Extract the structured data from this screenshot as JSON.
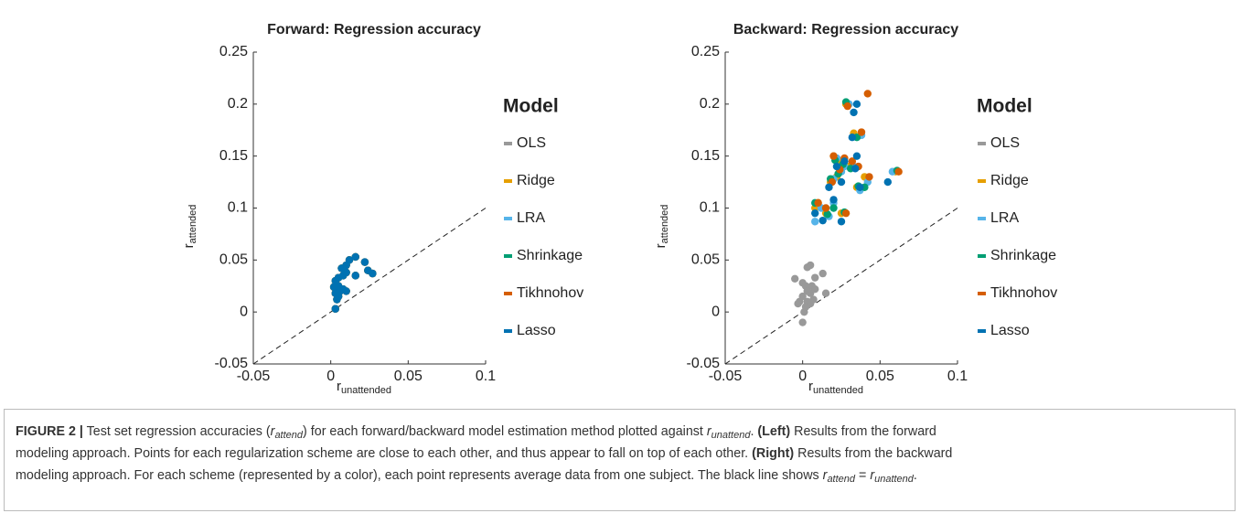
{
  "chart_data": [
    {
      "type": "scatter",
      "title": "Forward: Regression accuracy",
      "xlabel": {
        "text": "r",
        "sub": "unattended"
      },
      "ylabel": {
        "text": "r",
        "sub": "attended"
      },
      "xlim": [
        -0.05,
        0.1
      ],
      "ylim": [
        -0.05,
        0.25
      ],
      "xticks": [
        -0.05,
        0,
        0.05,
        0.1
      ],
      "yticks": [
        -0.05,
        0,
        0.05,
        0.1,
        0.15,
        0.2,
        0.25
      ],
      "legend_title": "Model",
      "series": [
        {
          "name": "OLS",
          "color": "#999999",
          "x": [
            0.003,
            0.004,
            0.005,
            0.003,
            0.006,
            0.004,
            0.003,
            0.005,
            0.008,
            0.01,
            0.007,
            0.01,
            0.012,
            0.016,
            0.022,
            0.027,
            0.024,
            0.016,
            0.008,
            0.01,
            0.005,
            0.002
          ],
          "values": [
            0.003,
            0.012,
            0.015,
            0.018,
            0.02,
            0.025,
            0.03,
            0.033,
            0.035,
            0.038,
            0.042,
            0.045,
            0.05,
            0.053,
            0.048,
            0.037,
            0.04,
            0.035,
            0.022,
            0.02,
            0.025,
            0.024
          ]
        },
        {
          "name": "Ridge",
          "color": "#e69f00",
          "x": [
            0.003,
            0.004,
            0.005,
            0.003,
            0.006,
            0.004,
            0.003,
            0.005,
            0.008,
            0.01,
            0.007,
            0.01,
            0.012,
            0.016,
            0.022,
            0.027,
            0.024,
            0.016,
            0.008,
            0.01,
            0.005,
            0.002
          ],
          "values": [
            0.003,
            0.012,
            0.015,
            0.018,
            0.02,
            0.025,
            0.03,
            0.033,
            0.035,
            0.038,
            0.042,
            0.045,
            0.05,
            0.053,
            0.048,
            0.037,
            0.04,
            0.035,
            0.022,
            0.02,
            0.025,
            0.024
          ]
        },
        {
          "name": "LRA",
          "color": "#56b4e9",
          "x": [
            0.003,
            0.004,
            0.005,
            0.003,
            0.006,
            0.004,
            0.003,
            0.005,
            0.008,
            0.01,
            0.007,
            0.01,
            0.012,
            0.016,
            0.022,
            0.027,
            0.024,
            0.016,
            0.008,
            0.01,
            0.005,
            0.002
          ],
          "values": [
            0.003,
            0.012,
            0.015,
            0.018,
            0.02,
            0.025,
            0.03,
            0.033,
            0.035,
            0.038,
            0.042,
            0.045,
            0.05,
            0.053,
            0.048,
            0.037,
            0.04,
            0.035,
            0.022,
            0.02,
            0.025,
            0.024
          ]
        },
        {
          "name": "Shrinkage",
          "color": "#009e73",
          "x": [
            0.003,
            0.004,
            0.005,
            0.003,
            0.006,
            0.004,
            0.003,
            0.005,
            0.008,
            0.01,
            0.007,
            0.01,
            0.012,
            0.016,
            0.022,
            0.027,
            0.024,
            0.016,
            0.008,
            0.01,
            0.005,
            0.002
          ],
          "values": [
            0.003,
            0.012,
            0.015,
            0.018,
            0.02,
            0.025,
            0.03,
            0.033,
            0.035,
            0.038,
            0.042,
            0.045,
            0.05,
            0.053,
            0.048,
            0.037,
            0.04,
            0.035,
            0.022,
            0.02,
            0.025,
            0.024
          ]
        },
        {
          "name": "Tikhnohov",
          "color": "#d55e00",
          "x": [
            0.003,
            0.004,
            0.005,
            0.003,
            0.006,
            0.004,
            0.003,
            0.005,
            0.008,
            0.01,
            0.007,
            0.01,
            0.012,
            0.016,
            0.022,
            0.027,
            0.024,
            0.016,
            0.008,
            0.01,
            0.005,
            0.002
          ],
          "values": [
            0.003,
            0.012,
            0.015,
            0.018,
            0.02,
            0.025,
            0.03,
            0.033,
            0.035,
            0.038,
            0.042,
            0.045,
            0.05,
            0.053,
            0.048,
            0.037,
            0.04,
            0.035,
            0.022,
            0.02,
            0.025,
            0.024
          ]
        },
        {
          "name": "Lasso",
          "color": "#0072b2",
          "x": [
            0.003,
            0.004,
            0.005,
            0.003,
            0.006,
            0.004,
            0.003,
            0.005,
            0.008,
            0.01,
            0.007,
            0.01,
            0.012,
            0.016,
            0.022,
            0.027,
            0.024,
            0.016,
            0.008,
            0.01,
            0.005,
            0.002
          ],
          "values": [
            0.003,
            0.012,
            0.015,
            0.018,
            0.02,
            0.025,
            0.03,
            0.033,
            0.035,
            0.038,
            0.042,
            0.045,
            0.05,
            0.053,
            0.048,
            0.037,
            0.04,
            0.035,
            0.022,
            0.02,
            0.025,
            0.024
          ]
        }
      ]
    },
    {
      "type": "scatter",
      "title": "Backward: Regression accuracy",
      "xlabel": {
        "text": "r",
        "sub": "unattended"
      },
      "ylabel": {
        "text": "r",
        "sub": "attended"
      },
      "xlim": [
        -0.05,
        0.1
      ],
      "ylim": [
        -0.05,
        0.25
      ],
      "xticks": [
        -0.05,
        0,
        0.05,
        0.1
      ],
      "yticks": [
        -0.05,
        0,
        0.05,
        0.1,
        0.15,
        0.2,
        0.25
      ],
      "legend_title": "Model",
      "series": [
        {
          "name": "OLS",
          "color": "#999999",
          "x": [
            0.003,
            0.005,
            -0.005,
            0.013,
            0.008,
            0.0,
            0.002,
            0.006,
            0.003,
            0.005,
            0.008,
            0.015,
            0.0,
            0.003,
            -0.002,
            -0.003,
            0.005,
            0.001,
            0.0,
            0.002,
            0.007
          ],
          "values": [
            0.043,
            0.045,
            0.032,
            0.037,
            0.033,
            0.028,
            0.025,
            0.025,
            0.02,
            0.018,
            0.022,
            0.018,
            0.015,
            0.01,
            0.01,
            0.008,
            0.008,
            0.0,
            -0.01,
            0.005,
            0.012
          ]
        },
        {
          "name": "Ridge",
          "color": "#e69f00",
          "x": [
            0.028,
            0.033,
            0.02,
            0.025,
            0.03,
            0.018,
            0.022,
            0.01,
            0.015,
            0.025,
            0.04,
            0.06,
            0.035,
            0.008
          ],
          "values": [
            0.2,
            0.172,
            0.15,
            0.145,
            0.14,
            0.125,
            0.13,
            0.105,
            0.095,
            0.095,
            0.13,
            0.135,
            0.12,
            0.1
          ]
        },
        {
          "name": "LRA",
          "color": "#56b4e9",
          "x": [
            0.03,
            0.038,
            0.022,
            0.027,
            0.033,
            0.02,
            0.025,
            0.012,
            0.017,
            0.008,
            0.042,
            0.058,
            0.037,
            0.02
          ],
          "values": [
            0.2,
            0.17,
            0.148,
            0.14,
            0.14,
            0.128,
            0.135,
            0.1,
            0.092,
            0.087,
            0.125,
            0.135,
            0.117,
            0.105
          ]
        },
        {
          "name": "Shrinkage",
          "color": "#009e73",
          "x": [
            0.028,
            0.035,
            0.021,
            0.026,
            0.031,
            0.018,
            0.023,
            0.008,
            0.016,
            0.027,
            0.04,
            0.061,
            0.036,
            0.02
          ],
          "values": [
            0.202,
            0.168,
            0.146,
            0.142,
            0.138,
            0.128,
            0.133,
            0.105,
            0.094,
            0.096,
            0.12,
            0.136,
            0.121,
            0.1
          ]
        },
        {
          "name": "Tikhnohov",
          "color": "#d55e00",
          "x": [
            0.042,
            0.029,
            0.038,
            0.02,
            0.027,
            0.032,
            0.019,
            0.024,
            0.01,
            0.015,
            0.028,
            0.043,
            0.062,
            0.036
          ],
          "values": [
            0.21,
            0.198,
            0.173,
            0.15,
            0.148,
            0.145,
            0.125,
            0.137,
            0.105,
            0.1,
            0.095,
            0.13,
            0.135,
            0.14
          ]
        },
        {
          "name": "Lasso",
          "color": "#0072b2",
          "x": [
            0.035,
            0.033,
            0.032,
            0.022,
            0.027,
            0.034,
            0.017,
            0.025,
            0.008,
            0.013,
            0.025,
            0.055,
            0.037,
            0.02,
            0.035
          ],
          "values": [
            0.2,
            0.192,
            0.168,
            0.14,
            0.145,
            0.138,
            0.12,
            0.125,
            0.095,
            0.088,
            0.087,
            0.125,
            0.12,
            0.108,
            0.15
          ]
        }
      ]
    }
  ],
  "caption": [
    [
      {
        "text": "FIGURE 2 |",
        "style": "bold"
      },
      {
        "text": " Test set regression accuracies (",
        "style": "normal"
      },
      {
        "text": "r",
        "style": "italic"
      },
      {
        "text": "attend",
        "style": "italic-sub"
      },
      {
        "text": ") for each forward/backward model estimation method plotted against ",
        "style": "normal"
      },
      {
        "text": "r",
        "style": "italic"
      },
      {
        "text": "unattend",
        "style": "italic-sub"
      },
      {
        "text": ". ",
        "style": "normal"
      },
      {
        "text": "(Left)",
        "style": "bold"
      },
      {
        "text": " Results from the forward",
        "style": "normal"
      }
    ],
    [
      {
        "text": "modeling approach. Points for each regularization scheme are close to each other, and thus appear to fall on top of each other. ",
        "style": "normal"
      },
      {
        "text": "(Right)",
        "style": "bold"
      },
      {
        "text": " Results from the backward",
        "style": "normal"
      }
    ],
    [
      {
        "text": "modeling approach. For each scheme (represented by a color), each point represents average data from one subject. The black line shows ",
        "style": "normal"
      },
      {
        "text": "r",
        "style": "italic"
      },
      {
        "text": "attend",
        "style": "italic-sub"
      },
      {
        "text": " = ",
        "style": "normal"
      },
      {
        "text": "r",
        "style": "italic"
      },
      {
        "text": "unattend",
        "style": "italic-sub"
      },
      {
        "text": ".",
        "style": "normal"
      }
    ]
  ]
}
